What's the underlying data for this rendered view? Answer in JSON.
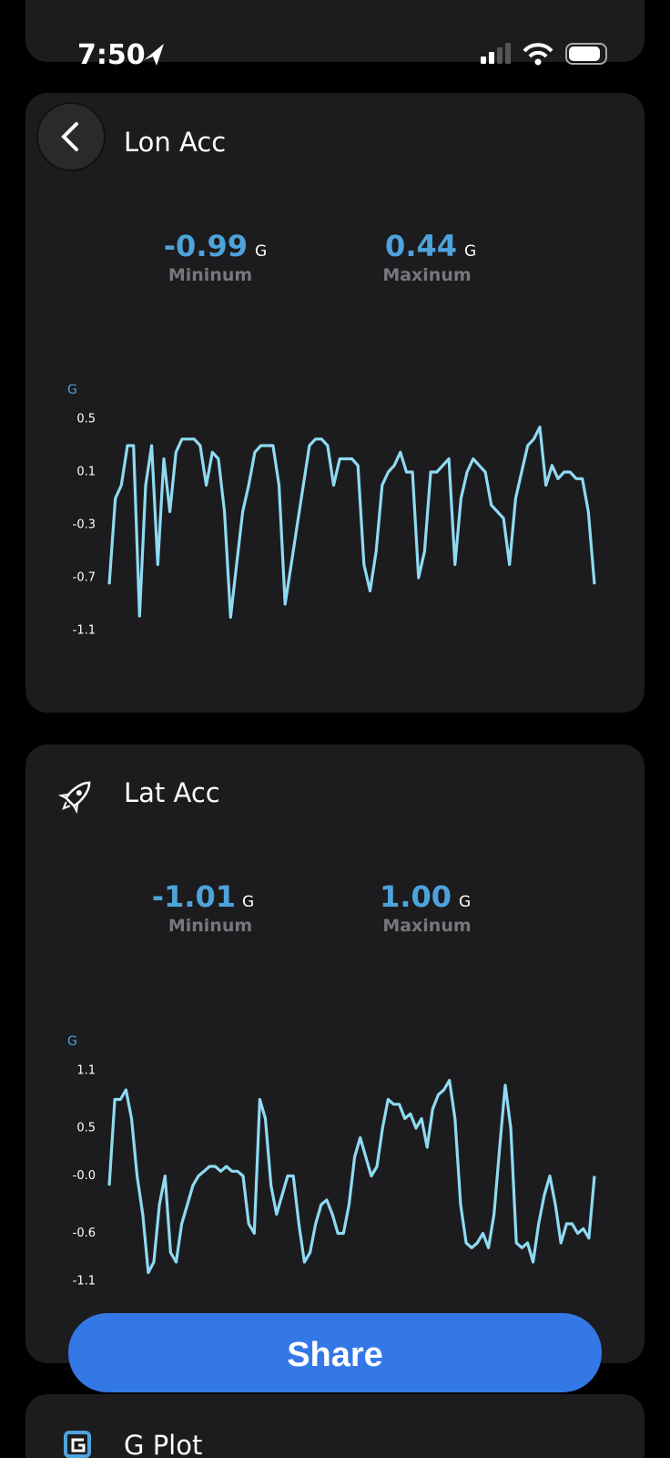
{
  "status_bar": {
    "time": "7:50"
  },
  "cards": [
    {
      "title": "Lon Acc",
      "minimum": {
        "value": "-0.99",
        "unit": "G",
        "label": "Mininum"
      },
      "maximum": {
        "value": "0.44",
        "unit": "G",
        "label": "Maxinum"
      }
    },
    {
      "title": "Lat Acc",
      "minimum": {
        "value": "-1.01",
        "unit": "G",
        "label": "Mininum"
      },
      "maximum": {
        "value": "1.00",
        "unit": "G",
        "label": "Maxinum"
      }
    },
    {
      "title": "G Plot"
    }
  ],
  "share_button": "Share",
  "chart_data": [
    {
      "type": "line",
      "y_label": "G",
      "color": "#8fdaf2",
      "ylim": [
        -1.1,
        0.5
      ],
      "yticks": [
        0.5,
        0.1,
        -0.3,
        -0.7,
        -1.1
      ],
      "values": [
        -0.75,
        -0.1,
        0.0,
        0.3,
        0.3,
        -0.99,
        0.0,
        0.3,
        -0.6,
        0.2,
        -0.2,
        0.25,
        0.35,
        0.35,
        0.35,
        0.3,
        0.0,
        0.25,
        0.2,
        -0.2,
        -1.0,
        -0.6,
        -0.2,
        0.0,
        0.25,
        0.3,
        0.3,
        0.3,
        0.0,
        -0.9,
        -0.6,
        -0.3,
        0.0,
        0.3,
        0.35,
        0.35,
        0.3,
        0.0,
        0.2,
        0.2,
        0.2,
        0.15,
        -0.6,
        -0.8,
        -0.5,
        0.0,
        0.1,
        0.15,
        0.25,
        0.1,
        0.1,
        -0.7,
        -0.5,
        0.1,
        0.1,
        0.15,
        0.2,
        -0.6,
        -0.1,
        0.1,
        0.2,
        0.15,
        0.1,
        -0.15,
        -0.2,
        -0.25,
        -0.6,
        -0.1,
        0.1,
        0.3,
        0.35,
        0.44,
        0.0,
        0.15,
        0.05,
        0.1,
        0.1,
        0.05,
        0.05,
        -0.2,
        -0.75
      ]
    },
    {
      "type": "line",
      "y_label": "G",
      "color": "#8fdaf2",
      "ylim": [
        -1.1,
        1.1
      ],
      "yticks": [
        1.1,
        0.5,
        {
          "value": 0,
          "label": "-0.0"
        },
        -0.6,
        -1.1
      ],
      "values": [
        -0.1,
        0.8,
        0.8,
        0.9,
        0.6,
        0.0,
        -0.4,
        -1.01,
        -0.9,
        -0.3,
        0.0,
        -0.8,
        -0.9,
        -0.5,
        -0.3,
        -0.1,
        0.0,
        0.05,
        0.1,
        0.1,
        0.05,
        0.1,
        0.05,
        0.05,
        0.0,
        -0.5,
        -0.6,
        0.8,
        0.6,
        -0.1,
        -0.4,
        -0.2,
        0.0,
        0.0,
        -0.5,
        -0.9,
        -0.8,
        -0.5,
        -0.3,
        -0.25,
        -0.4,
        -0.6,
        -0.6,
        -0.3,
        0.2,
        0.4,
        0.2,
        0.0,
        0.1,
        0.5,
        0.8,
        0.75,
        0.75,
        0.6,
        0.65,
        0.5,
        0.6,
        0.3,
        0.7,
        0.85,
        0.9,
        1.0,
        0.6,
        -0.3,
        -0.7,
        -0.75,
        -0.7,
        -0.6,
        -0.75,
        -0.4,
        0.3,
        0.95,
        0.5,
        -0.7,
        -0.75,
        -0.7,
        -0.9,
        -0.5,
        -0.2,
        0.0,
        -0.3,
        -0.7,
        -0.5,
        -0.5,
        -0.6,
        -0.55,
        -0.65,
        0.0
      ]
    }
  ]
}
